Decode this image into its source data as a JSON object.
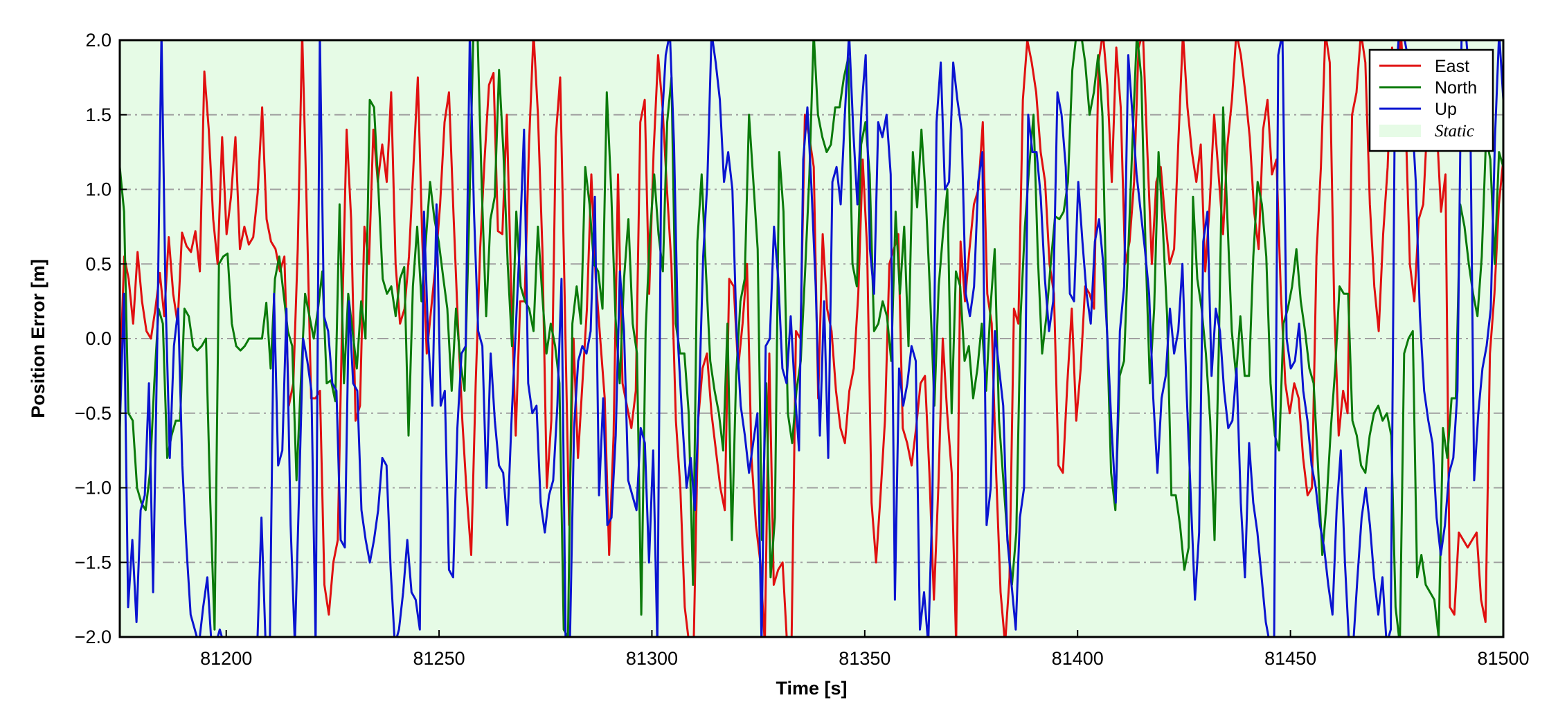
{
  "chart_data": {
    "type": "line",
    "title": "",
    "xlabel": "Time [s]",
    "ylabel": "Position Error [m]",
    "xlim": [
      81175,
      81500
    ],
    "ylim": [
      -2.0,
      2.0
    ],
    "x_ticks": [
      81200,
      81250,
      81300,
      81350,
      81400,
      81450,
      81500
    ],
    "x_tick_labels": [
      "81200",
      "81250",
      "81300",
      "81350",
      "81400",
      "81450",
      "81500"
    ],
    "y_ticks": [
      -2.0,
      -1.5,
      -1.0,
      -0.5,
      0.0,
      0.5,
      1.0,
      1.5,
      2.0
    ],
    "y_tick_labels": [
      "−2.0",
      "−1.5",
      "−1.0",
      "−0.5",
      "0.0",
      "0.5",
      "1.0",
      "1.5",
      "2.0"
    ],
    "grid": "horizontal dash-dot",
    "legend_position": "top-right",
    "shaded_region": {
      "label": "Static",
      "x_range": [
        81175,
        81500
      ],
      "color": "#e6fbe6"
    },
    "x_start": 81175,
    "x_step": 1,
    "series": [
      {
        "name": "East",
        "color": "#e01010",
        "values": [
          -0.3,
          0.55,
          0.4,
          0.1,
          0.58,
          0.25,
          0.05,
          0.0,
          0.2,
          0.44,
          0.15,
          0.68,
          0.3,
          0.1,
          0.71,
          0.62,
          0.58,
          0.72,
          0.45,
          1.79,
          1.4,
          0.8,
          0.5,
          1.35,
          0.7,
          0.95,
          1.35,
          0.6,
          0.75,
          0.63,
          0.68,
          0.98,
          1.55,
          0.8,
          0.65,
          0.6,
          0.45,
          0.55,
          -0.45,
          -0.3,
          0.6,
          2.05,
          0.9,
          -0.4,
          -0.4,
          -0.35,
          -1.65,
          -1.85,
          -1.5,
          -1.35,
          0.15,
          1.4,
          0.8,
          -0.55,
          -0.45,
          0.75,
          0.5,
          1.4,
          1.05,
          1.3,
          1.05,
          1.65,
          0.5,
          0.1,
          0.2,
          0.55,
          1.15,
          1.75,
          0.65,
          -0.1,
          0.2,
          0.5,
          0.9,
          1.45,
          1.65,
          0.85,
          0.1,
          -0.55,
          -1.05,
          -1.45,
          -0.3,
          0.6,
          1.2,
          1.7,
          1.78,
          0.72,
          0.7,
          1.5,
          0.3,
          -0.65,
          0.25,
          0.25,
          1.3,
          2.05,
          1.5,
          0.6,
          -1.0,
          -0.55,
          1.35,
          1.75,
          0.3,
          -1.25,
          0.0,
          -0.8,
          -0.3,
          0.2,
          1.1,
          0.4,
          0.0,
          -0.4,
          -1.45,
          -0.65,
          1.1,
          -0.3,
          -0.45,
          -0.6,
          -0.35,
          1.45,
          1.6,
          0.3,
          1.25,
          1.9,
          1.55,
          1.0,
          0.5,
          -0.55,
          -1.0,
          -1.8,
          -2.05,
          -2.05,
          -0.55,
          -0.2,
          -0.1,
          -0.5,
          -0.75,
          -1.0,
          -1.15,
          0.4,
          0.35,
          -0.2,
          0.1,
          0.5,
          -0.8,
          -1.25,
          -1.5,
          -2.05,
          -0.1,
          -1.65,
          -1.55,
          -1.5,
          -2.05,
          -2.05,
          0.05,
          0.0,
          1.5,
          1.35,
          1.15,
          -0.4,
          0.7,
          0.2,
          0.05,
          -0.35,
          -0.6,
          -0.7,
          -0.35,
          -0.2,
          0.3,
          1.2,
          0.6,
          -1.1,
          -1.5,
          -1.05,
          -0.55,
          0.5,
          0.6,
          0.7,
          -0.6,
          -0.7,
          -0.85,
          -0.6,
          -0.3,
          -0.25,
          -0.9,
          -1.75,
          -1.0,
          0.0,
          -0.5,
          -0.9,
          -2.05,
          0.65,
          0.25,
          0.6,
          0.9,
          1.0,
          1.45,
          0.3,
          0.1,
          -0.9,
          -1.7,
          -2.05,
          -1.6,
          0.2,
          0.1,
          1.6,
          2.0,
          1.85,
          1.65,
          1.25,
          1.05,
          0.5,
          0.3,
          -0.85,
          -0.9,
          -0.3,
          0.2,
          -0.55,
          -0.2,
          0.35,
          0.3,
          0.2,
          1.85,
          2.05,
          1.7,
          1.05,
          1.95,
          1.55,
          0.5,
          0.65,
          1.05,
          1.95,
          2.05,
          1.25,
          0.5,
          1.05,
          1.15,
          0.8,
          0.5,
          0.6,
          1.35,
          2.05,
          1.55,
          1.25,
          1.05,
          1.3,
          0.45,
          0.9,
          1.5,
          1.1,
          0.7,
          1.3,
          1.6,
          2.05,
          1.9,
          1.65,
          1.35,
          0.85,
          0.6,
          1.4,
          1.6,
          1.1,
          1.2,
          0.3,
          -0.3,
          -0.5,
          -0.3,
          -0.4,
          -0.8,
          -1.05,
          -1.0,
          0.55,
          1.15,
          2.05,
          1.85,
          0.2,
          -0.65,
          -0.35,
          -0.5,
          1.5,
          1.65,
          2.05,
          1.85,
          0.9,
          0.35,
          0.05,
          0.7,
          1.15,
          1.95,
          1.6,
          2.05,
          1.5,
          0.5,
          0.25,
          0.8,
          0.9,
          1.5,
          1.85,
          1.45,
          0.85,
          1.1,
          -1.8,
          -1.85,
          -1.3,
          -1.35,
          -1.4,
          -1.35,
          -1.3,
          -1.75,
          -1.9,
          -0.1,
          0.3,
          0.9,
          1.2
        ],
        "end_value": 1.0
      },
      {
        "name": "North",
        "color": "#0a7a0a",
        "values": [
          1.15,
          0.85,
          -0.5,
          -0.55,
          -1.0,
          -1.1,
          -1.15,
          -0.9,
          -0.3,
          0.2,
          0.1,
          -0.8,
          -0.65,
          -0.55,
          -0.55,
          0.2,
          0.15,
          -0.05,
          -0.08,
          -0.05,
          0.0,
          -1.1,
          -1.95,
          0.5,
          0.55,
          0.57,
          0.1,
          -0.05,
          -0.08,
          -0.05,
          0.0,
          0.0,
          0.0,
          0.0,
          0.24,
          -0.2,
          0.4,
          0.55,
          0.3,
          0.05,
          -0.05,
          -0.95,
          -0.3,
          0.3,
          0.15,
          0.0,
          0.2,
          0.45,
          -0.3,
          -0.28,
          -0.42,
          0.9,
          -0.3,
          0.3,
          0.05,
          -0.2,
          0.25,
          0.0,
          1.6,
          1.55,
          1.0,
          0.4,
          0.3,
          0.35,
          0.15,
          0.4,
          0.48,
          -0.65,
          0.35,
          0.75,
          0.25,
          0.65,
          1.05,
          0.8,
          0.65,
          0.42,
          0.2,
          -0.35,
          0.2,
          -0.15,
          -0.35,
          0.75,
          2.0,
          2.05,
          1.0,
          0.15,
          0.8,
          0.95,
          1.8,
          1.25,
          0.5,
          -0.05,
          0.85,
          0.35,
          0.25,
          0.2,
          0.05,
          0.75,
          0.3,
          -0.1,
          0.1,
          -0.05,
          -0.3,
          -1.95,
          -2.0,
          0.1,
          0.35,
          0.1,
          1.15,
          0.9,
          0.5,
          0.45,
          0.2,
          1.65,
          1.0,
          0.15,
          -0.3,
          0.4,
          0.8,
          0.1,
          -0.1,
          -1.85,
          0.05,
          0.7,
          1.1,
          0.7,
          0.45,
          1.45,
          1.75,
          0.1,
          -0.1,
          -0.1,
          -0.5,
          -1.65,
          0.65,
          1.1,
          0.45,
          -0.15,
          -0.35,
          -0.5,
          -0.75,
          0.1,
          -1.35,
          -0.25,
          0.25,
          0.4,
          1.5,
          1.05,
          0.6,
          -1.35,
          -0.3,
          -1.6,
          -1.2,
          1.25,
          0.85,
          -0.5,
          -0.7,
          -0.35,
          -0.15,
          0.45,
          1.1,
          2.05,
          1.5,
          1.35,
          1.25,
          1.3,
          1.55,
          1.55,
          1.75,
          1.88,
          0.5,
          0.35,
          1.3,
          1.45,
          1.1,
          0.05,
          0.1,
          0.25,
          0.15,
          -0.15,
          0.85,
          0.3,
          0.75,
          -0.05,
          1.25,
          0.88,
          1.4,
          0.95,
          0.3,
          -0.45,
          0.35,
          0.7,
          1.0,
          -0.5,
          0.45,
          0.35,
          -0.15,
          -0.05,
          -0.4,
          -0.2,
          0.1,
          -0.35,
          0.2,
          0.6,
          -0.55,
          -0.95,
          -1.35,
          -1.65,
          -1.3,
          0.15,
          0.75,
          1.15,
          1.5,
          0.55,
          -0.1,
          0.15,
          0.5,
          0.82,
          0.8,
          0.85,
          1.05,
          1.8,
          2.05,
          2.05,
          1.85,
          1.5,
          1.65,
          1.9,
          1.5,
          0.1,
          -0.9,
          -1.15,
          -0.25,
          -0.15,
          0.6,
          1.35,
          2.05,
          1.75,
          0.6,
          -0.3,
          0.2,
          1.25,
          0.75,
          0.15,
          -1.05,
          -1.05,
          -1.25,
          -1.55,
          -1.4,
          0.95,
          0.4,
          0.2,
          -0.1,
          -0.55,
          -1.35,
          -0.05,
          1.55,
          0.8,
          0.05,
          -0.25,
          0.15,
          -0.25,
          -0.25,
          0.55,
          1.05,
          0.9,
          0.55,
          -0.3,
          -0.65,
          -0.75,
          0.1,
          0.2,
          0.35,
          0.6,
          0.25,
          0.05,
          -0.2,
          -0.3,
          -0.85,
          -1.45,
          -1.1,
          -0.6,
          -0.2,
          0.35,
          0.3,
          0.3,
          -0.55,
          -0.65,
          -0.85,
          -0.9,
          -0.65,
          -0.5,
          -0.45,
          -0.55,
          -0.5,
          -0.65,
          -1.8,
          -2.05,
          -0.1,
          0.0,
          0.05,
          -1.6,
          -1.45,
          -1.65,
          -1.7,
          -1.75,
          -2.0,
          -0.6,
          -0.8,
          -0.4,
          -0.4,
          0.9,
          0.75,
          0.5,
          0.3,
          0.15,
          0.55,
          1.35,
          1.2,
          0.5,
          1.25,
          1.15
        ]
      },
      {
        "name": "Up",
        "color": "#0a14d0",
        "values": [
          -0.6,
          0.3,
          -1.8,
          -1.35,
          -1.9,
          -1.15,
          -1.05,
          -0.3,
          -1.7,
          0.0,
          2.05,
          0.25,
          -0.8,
          -0.05,
          0.2,
          -0.85,
          -1.4,
          -1.85,
          -1.95,
          -2.05,
          -1.8,
          -1.6,
          -2.05,
          -2.05,
          -1.95,
          -2.05,
          -2.05,
          -2.05,
          -2.05,
          -2.05,
          -2.05,
          -2.05,
          -2.05,
          -2.05,
          -1.2,
          -2.05,
          -2.05,
          0.3,
          -0.85,
          -0.75,
          0.2,
          -1.25,
          -2.05,
          -1.05,
          0.0,
          -0.15,
          -0.35,
          -2.05,
          2.05,
          0.15,
          0.05,
          -0.3,
          -0.35,
          -1.35,
          -1.4,
          0.25,
          -0.3,
          -0.35,
          -1.15,
          -1.35,
          -1.5,
          -1.35,
          -1.15,
          -0.8,
          -0.85,
          -1.55,
          -2.05,
          -1.95,
          -1.7,
          -1.35,
          -1.7,
          -1.75,
          -1.95,
          0.85,
          0.0,
          -0.45,
          0.9,
          -0.45,
          -0.35,
          -1.55,
          -1.6,
          -0.6,
          -0.1,
          -0.05,
          2.05,
          0.85,
          0.05,
          -0.05,
          -1.0,
          -0.1,
          -0.55,
          -0.85,
          -0.9,
          -1.25,
          -0.55,
          0.05,
          0.65,
          1.4,
          -0.3,
          -0.5,
          -0.45,
          -1.1,
          -1.3,
          -1.05,
          -0.95,
          -0.45,
          0.4,
          -2.05,
          -2.05,
          -0.6,
          -0.15,
          -0.05,
          -0.1,
          0.05,
          0.95,
          -1.05,
          -0.4,
          -1.25,
          -1.2,
          -0.65,
          0.45,
          0.05,
          -0.95,
          -1.05,
          -1.15,
          -0.6,
          -0.7,
          -1.5,
          -0.75,
          -2.05,
          1.4,
          1.9,
          2.05,
          1.3,
          -0.05,
          -0.55,
          -1.0,
          -0.8,
          -1.15,
          -0.4,
          0.55,
          1.05,
          2.05,
          1.85,
          1.6,
          1.05,
          1.25,
          1.0,
          0.05,
          -0.45,
          -0.65,
          -0.9,
          -0.7,
          -0.5,
          -2.05,
          -0.05,
          0.0,
          0.75,
          0.4,
          -0.2,
          -0.3,
          0.15,
          -0.35,
          -0.75,
          1.2,
          1.55,
          1.0,
          0.35,
          -0.65,
          0.25,
          -0.8,
          1.05,
          1.15,
          0.9,
          1.5,
          2.05,
          1.4,
          0.9,
          1.55,
          1.9,
          0.6,
          0.3,
          1.45,
          1.35,
          1.5,
          1.1,
          -1.75,
          -0.2,
          -0.45,
          -0.3,
          -0.05,
          -0.15,
          -1.95,
          -1.7,
          -2.05,
          -1.1,
          1.45,
          1.85,
          1.0,
          1.05,
          1.85,
          1.6,
          1.4,
          0.3,
          0.15,
          0.35,
          1.05,
          1.25,
          -1.25,
          -1.0,
          0.05,
          -0.2,
          -0.45,
          -1.35,
          -1.65,
          -1.95,
          -1.2,
          -1.0,
          1.5,
          1.25,
          1.25,
          0.95,
          0.4,
          0.05,
          0.25,
          1.65,
          1.5,
          1.15,
          0.3,
          0.25,
          1.05,
          0.65,
          0.3,
          0.1,
          0.65,
          0.8,
          0.5,
          0.0,
          -0.6,
          -1.1,
          0.05,
          0.35,
          1.9,
          1.5,
          1.1,
          0.85,
          0.6,
          0.3,
          -0.4,
          -0.9,
          -0.4,
          -0.25,
          0.2,
          -0.1,
          0.05,
          0.5,
          -0.35,
          -1.05,
          -1.75,
          -1.3,
          0.65,
          0.85,
          -0.25,
          0.2,
          0.05,
          -0.35,
          -0.6,
          -0.55,
          -0.2,
          -1.1,
          -1.6,
          -0.7,
          -1.1,
          -1.3,
          -1.6,
          -1.9,
          -2.05,
          -2.05,
          1.9,
          2.05,
          0.0,
          -0.2,
          -0.15,
          0.1,
          -0.35,
          -0.55,
          -0.85,
          -1.0,
          -1.25,
          -1.4,
          -1.65,
          -1.85,
          -1.15,
          -0.75,
          -1.5,
          -2.05,
          -2.05,
          -1.6,
          -1.2,
          -1.0,
          -1.25,
          -1.6,
          -1.85,
          -1.6,
          -2.05,
          -1.95,
          1.65,
          2.05,
          2.05,
          1.9,
          1.55,
          1.05,
          0.15,
          -0.35,
          -0.55,
          -0.7,
          -1.2,
          -1.45,
          -1.25,
          -0.9,
          -0.8,
          -0.35,
          2.05,
          2.05,
          1.7,
          -0.95,
          -0.5,
          -0.2,
          -0.05,
          0.2,
          1.35,
          2.05,
          1.6
        ]
      }
    ]
  }
}
